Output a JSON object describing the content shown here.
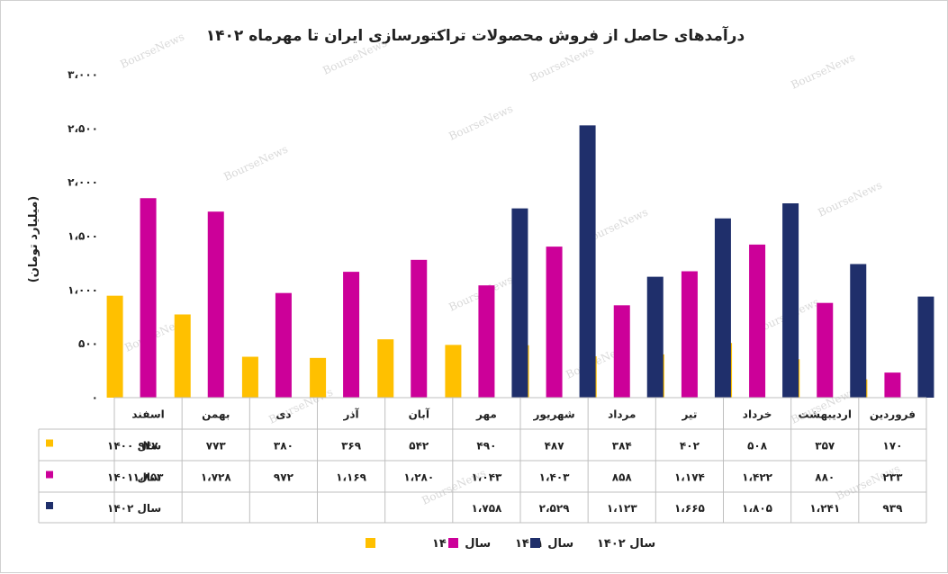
{
  "chart_data": {
    "type": "bar",
    "title": "درآمدهای حاصل از فروش محصولات تراکتورسازی ایران تا مهرماه ۱۴۰۲",
    "ylabel": "(میلیارد تومان)",
    "xlabel": "",
    "ylim": [
      0,
      3000
    ],
    "ytick_values": [
      0,
      500,
      1000,
      1500,
      2000,
      2500,
      3000
    ],
    "ytick_labels": [
      "۰",
      "۵۰۰",
      "۱،۰۰۰",
      "۱،۵۰۰",
      "۲،۰۰۰",
      "۲،۵۰۰",
      "۳،۰۰۰"
    ],
    "grid": false,
    "legend_position": "bottom",
    "watermark": "BourseNews",
    "categories": [
      "فروردین",
      "اردیبهشت",
      "خرداد",
      "تیر",
      "مرداد",
      "شهریور",
      "مهر",
      "آبان",
      "آذر",
      "دی",
      "بهمن",
      "اسفند"
    ],
    "series": [
      {
        "name": "سال ۱۴۰۰",
        "color": "#FFC000",
        "values": [
          170,
          357,
          508,
          402,
          384,
          487,
          490,
          542,
          369,
          380,
          773,
          947
        ],
        "labels": [
          "۱۷۰",
          "۳۵۷",
          "۵۰۸",
          "۴۰۲",
          "۳۸۴",
          "۴۸۷",
          "۴۹۰",
          "۵۴۲",
          "۳۶۹",
          "۳۸۰",
          "۷۷۳",
          "۹۴۷"
        ]
      },
      {
        "name": "سال ۱۴۰۱",
        "color": "#CC0099",
        "values": [
          233,
          880,
          1422,
          1174,
          858,
          1403,
          1043,
          1280,
          1169,
          972,
          1728,
          1853
        ],
        "labels": [
          "۲۳۳",
          "۸۸۰",
          "۱،۴۲۲",
          "۱،۱۷۴",
          "۸۵۸",
          "۱،۴۰۳",
          "۱،۰۴۳",
          "۱،۲۸۰",
          "۱،۱۶۹",
          "۹۷۲",
          "۱،۷۲۸",
          "۱،۸۵۳"
        ]
      },
      {
        "name": "سال ۱۴۰۲",
        "color": "#1F2F6B",
        "values": [
          939,
          1241,
          1805,
          1665,
          1123,
          2529,
          1758,
          null,
          null,
          null,
          null,
          null
        ],
        "labels": [
          "۹۳۹",
          "۱،۲۴۱",
          "۱،۸۰۵",
          "۱،۶۶۵",
          "۱،۱۲۳",
          "۲،۵۲۹",
          "۱،۷۵۸",
          "",
          "",
          "",
          "",
          ""
        ]
      }
    ]
  }
}
